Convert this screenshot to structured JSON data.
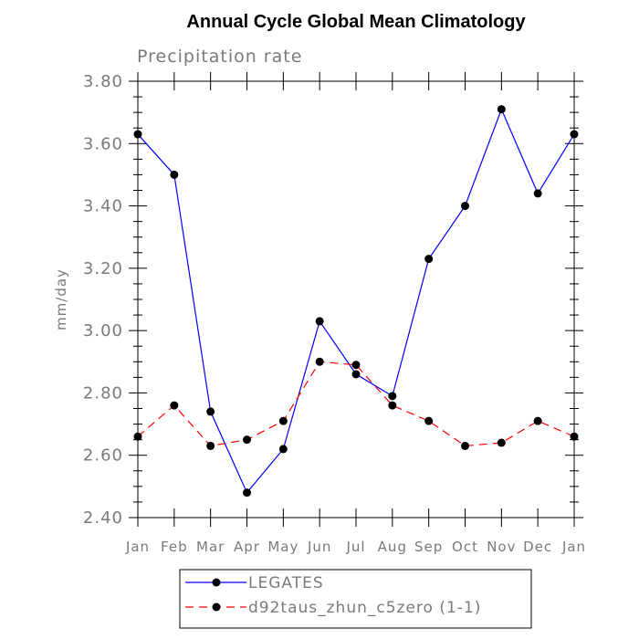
{
  "chart_data": {
    "type": "line",
    "title": "Annual Cycle Global Mean Climatology",
    "subtitle": "Precipitation rate",
    "xlabel": "",
    "ylabel": "mm/day",
    "categories": [
      "Jan",
      "Feb",
      "Mar",
      "Apr",
      "May",
      "Jun",
      "Jul",
      "Aug",
      "Sep",
      "Oct",
      "Nov",
      "Dec",
      "Jan"
    ],
    "ylim": [
      2.4,
      3.8
    ],
    "yticks": [
      "2.40",
      "2.60",
      "2.80",
      "3.00",
      "3.20",
      "3.40",
      "3.60",
      "3.80"
    ],
    "legend_position": "bottom-center",
    "series": [
      {
        "name": "LEGATES",
        "color": "#0000ff",
        "line_style": "solid",
        "values": [
          3.63,
          3.5,
          2.74,
          2.48,
          2.62,
          3.03,
          2.86,
          2.79,
          3.23,
          3.4,
          3.71,
          3.44,
          3.63
        ]
      },
      {
        "name": "d92taus_zhun_c5zero (1-1)",
        "color": "#ff0000",
        "line_style": "dashed",
        "values": [
          2.66,
          2.76,
          2.63,
          2.65,
          2.71,
          2.9,
          2.89,
          2.76,
          2.71,
          2.63,
          2.64,
          2.71,
          2.66
        ]
      }
    ]
  }
}
